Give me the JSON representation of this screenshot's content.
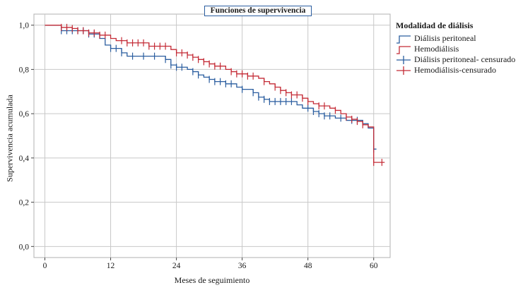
{
  "chart_data": {
    "type": "line",
    "title": "Funciones de supervivencia",
    "xlabel": "Meses de seguimiento",
    "ylabel": "Supervivencia acumulada",
    "xlim": [
      -2,
      63
    ],
    "ylim": [
      -0.05,
      1.05
    ],
    "xticks": [
      0,
      12,
      24,
      36,
      48,
      60
    ],
    "yticks": [
      0.0,
      0.2,
      0.4,
      0.6,
      0.8,
      1.0
    ],
    "ytick_labels": [
      "0,0",
      "0,2",
      "0,4",
      "0,6",
      "0,8",
      "1,0"
    ],
    "grid": true,
    "legend_title": "Modalidad de diálisis",
    "legend_placement": "right",
    "series": [
      {
        "name": "Diálisis peritoneal",
        "color": "#2a5d9f",
        "steps": [
          [
            0,
            1.0
          ],
          [
            3,
            0.975
          ],
          [
            8,
            0.96
          ],
          [
            10,
            0.94
          ],
          [
            11,
            0.91
          ],
          [
            12,
            0.895
          ],
          [
            14,
            0.875
          ],
          [
            15,
            0.86
          ],
          [
            22,
            0.845
          ],
          [
            23,
            0.82
          ],
          [
            24,
            0.81
          ],
          [
            26,
            0.8
          ],
          [
            27,
            0.79
          ],
          [
            28,
            0.775
          ],
          [
            29,
            0.765
          ],
          [
            30,
            0.755
          ],
          [
            31,
            0.745
          ],
          [
            33,
            0.735
          ],
          [
            35,
            0.72
          ],
          [
            36,
            0.71
          ],
          [
            38,
            0.695
          ],
          [
            39,
            0.675
          ],
          [
            40,
            0.665
          ],
          [
            41,
            0.655
          ],
          [
            46,
            0.64
          ],
          [
            47,
            0.625
          ],
          [
            49,
            0.61
          ],
          [
            50,
            0.6
          ],
          [
            51,
            0.59
          ],
          [
            53,
            0.58
          ],
          [
            55,
            0.57
          ],
          [
            58,
            0.555
          ],
          [
            59,
            0.535
          ],
          [
            60,
            0.44
          ]
        ],
        "end_x": 60.5,
        "censored": [
          [
            3,
            0.975
          ],
          [
            4,
            0.975
          ],
          [
            5,
            0.975
          ],
          [
            6,
            0.975
          ],
          [
            7,
            0.975
          ],
          [
            8,
            0.96
          ],
          [
            9,
            0.96
          ],
          [
            12,
            0.895
          ],
          [
            13,
            0.895
          ],
          [
            14,
            0.875
          ],
          [
            16,
            0.86
          ],
          [
            18,
            0.86
          ],
          [
            20,
            0.86
          ],
          [
            22,
            0.845
          ],
          [
            23,
            0.82
          ],
          [
            24,
            0.81
          ],
          [
            25,
            0.81
          ],
          [
            27,
            0.79
          ],
          [
            28,
            0.775
          ],
          [
            30,
            0.755
          ],
          [
            31,
            0.745
          ],
          [
            32,
            0.745
          ],
          [
            33,
            0.735
          ],
          [
            34,
            0.735
          ],
          [
            36,
            0.71
          ],
          [
            38,
            0.695
          ],
          [
            39,
            0.675
          ],
          [
            40,
            0.665
          ],
          [
            41,
            0.655
          ],
          [
            42,
            0.655
          ],
          [
            43,
            0.655
          ],
          [
            44,
            0.655
          ],
          [
            45,
            0.655
          ],
          [
            48,
            0.625
          ],
          [
            49,
            0.61
          ],
          [
            50,
            0.6
          ],
          [
            51,
            0.59
          ],
          [
            52,
            0.59
          ],
          [
            54,
            0.58
          ],
          [
            56,
            0.57
          ],
          [
            57,
            0.57
          ],
          [
            60,
            0.44
          ]
        ]
      },
      {
        "name": "Hemodiálisis",
        "color": "#c42b36",
        "steps": [
          [
            0,
            1.0
          ],
          [
            3,
            0.99
          ],
          [
            5,
            0.985
          ],
          [
            6,
            0.975
          ],
          [
            8,
            0.965
          ],
          [
            10,
            0.955
          ],
          [
            12,
            0.94
          ],
          [
            13,
            0.93
          ],
          [
            15,
            0.92
          ],
          [
            19,
            0.905
          ],
          [
            23,
            0.89
          ],
          [
            24,
            0.875
          ],
          [
            26,
            0.865
          ],
          [
            27,
            0.855
          ],
          [
            28,
            0.845
          ],
          [
            29,
            0.835
          ],
          [
            30,
            0.825
          ],
          [
            31,
            0.815
          ],
          [
            33,
            0.8
          ],
          [
            34,
            0.79
          ],
          [
            35,
            0.78
          ],
          [
            37,
            0.77
          ],
          [
            39,
            0.76
          ],
          [
            40,
            0.745
          ],
          [
            41,
            0.735
          ],
          [
            42,
            0.72
          ],
          [
            43,
            0.705
          ],
          [
            44,
            0.695
          ],
          [
            45,
            0.685
          ],
          [
            47,
            0.67
          ],
          [
            48,
            0.655
          ],
          [
            49,
            0.645
          ],
          [
            50,
            0.635
          ],
          [
            52,
            0.625
          ],
          [
            53,
            0.615
          ],
          [
            54,
            0.6
          ],
          [
            55,
            0.585
          ],
          [
            56,
            0.575
          ],
          [
            57,
            0.565
          ],
          [
            58,
            0.55
          ],
          [
            59,
            0.54
          ],
          [
            60,
            0.38
          ]
        ],
        "end_x": 62,
        "censored": [
          [
            3,
            0.99
          ],
          [
            4,
            0.99
          ],
          [
            5,
            0.985
          ],
          [
            6,
            0.975
          ],
          [
            7,
            0.975
          ],
          [
            8,
            0.965
          ],
          [
            9,
            0.965
          ],
          [
            10,
            0.955
          ],
          [
            11,
            0.955
          ],
          [
            14,
            0.93
          ],
          [
            15,
            0.92
          ],
          [
            16,
            0.92
          ],
          [
            17,
            0.92
          ],
          [
            18,
            0.92
          ],
          [
            19,
            0.905
          ],
          [
            20,
            0.905
          ],
          [
            21,
            0.905
          ],
          [
            22,
            0.905
          ],
          [
            24,
            0.875
          ],
          [
            25,
            0.875
          ],
          [
            26,
            0.865
          ],
          [
            27,
            0.855
          ],
          [
            28,
            0.845
          ],
          [
            29,
            0.835
          ],
          [
            30,
            0.825
          ],
          [
            31,
            0.815
          ],
          [
            32,
            0.815
          ],
          [
            34,
            0.79
          ],
          [
            35,
            0.78
          ],
          [
            36,
            0.78
          ],
          [
            37,
            0.77
          ],
          [
            38,
            0.77
          ],
          [
            40,
            0.745
          ],
          [
            42,
            0.72
          ],
          [
            43,
            0.705
          ],
          [
            44,
            0.695
          ],
          [
            45,
            0.685
          ],
          [
            46,
            0.685
          ],
          [
            47,
            0.67
          ],
          [
            48,
            0.655
          ],
          [
            50,
            0.635
          ],
          [
            51,
            0.635
          ],
          [
            53,
            0.615
          ],
          [
            55,
            0.585
          ],
          [
            56,
            0.575
          ],
          [
            57,
            0.565
          ],
          [
            58,
            0.55
          ],
          [
            60,
            0.38
          ],
          [
            61.5,
            0.38
          ]
        ]
      }
    ],
    "legend_entries": [
      {
        "label": "Diálisis peritoneal",
        "kind": "line",
        "color": "#2a5d9f"
      },
      {
        "label": "Hemodiálisis",
        "kind": "line",
        "color": "#c42b36"
      },
      {
        "label": "Diálisis peritoneal- censurado",
        "kind": "censor",
        "color": "#2a5d9f"
      },
      {
        "label": "Hemodiálisis-censurado",
        "kind": "censor",
        "color": "#c42b36"
      }
    ]
  }
}
